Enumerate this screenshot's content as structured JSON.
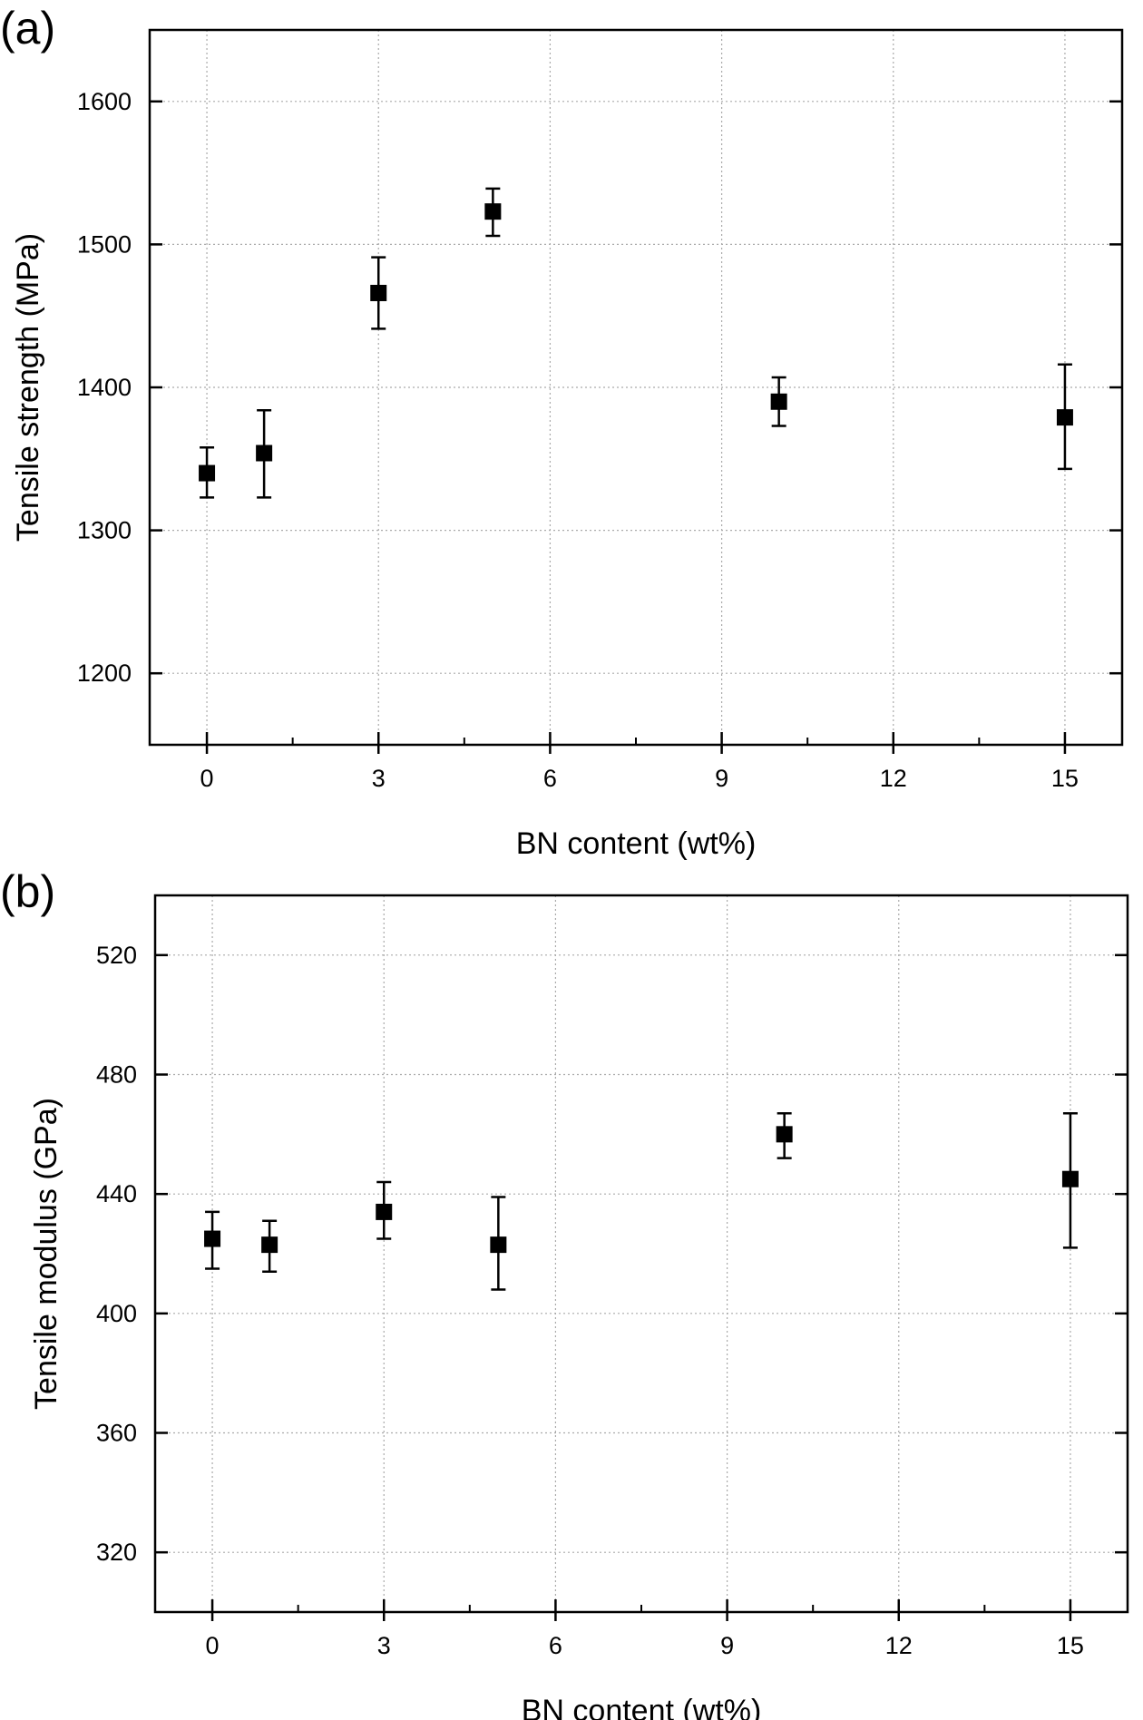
{
  "chart_data": [
    {
      "type": "scatter",
      "panel_label": "(a)",
      "title": "",
      "xlabel": "BN content (wt%)",
      "ylabel": "Tensile strength (MPa)",
      "xlim": [
        -1,
        16
      ],
      "ylim": [
        1150,
        1650
      ],
      "xticks": [
        0,
        3,
        6,
        9,
        12,
        15
      ],
      "yticks": [
        1200,
        1300,
        1400,
        1500,
        1600
      ],
      "grid": true,
      "series": [
        {
          "name": "Tensile strength",
          "color": "#000000",
          "marker": "square",
          "x": [
            0,
            1,
            3,
            5,
            10,
            15
          ],
          "y": [
            1340,
            1354,
            1466,
            1523,
            1390,
            1379
          ],
          "err_low": [
            1323,
            1323,
            1441,
            1506,
            1373,
            1343
          ],
          "err_high": [
            1358,
            1384,
            1491,
            1539,
            1407,
            1416
          ]
        }
      ]
    },
    {
      "type": "scatter",
      "panel_label": "(b)",
      "title": "",
      "xlabel": "BN content (wt%)",
      "ylabel": "Tensile modulus (GPa)",
      "xlim": [
        -1,
        16
      ],
      "ylim": [
        300,
        540
      ],
      "xticks": [
        0,
        3,
        6,
        9,
        12,
        15
      ],
      "yticks": [
        320,
        360,
        400,
        440,
        480,
        520
      ],
      "grid": true,
      "series": [
        {
          "name": "Tensile modulus",
          "color": "#000000",
          "marker": "square",
          "x": [
            0,
            1,
            3,
            5,
            10,
            15
          ],
          "y": [
            425,
            423,
            434,
            423,
            460,
            445
          ],
          "err_low": [
            415,
            414,
            425,
            408,
            452,
            422
          ],
          "err_high": [
            434,
            431,
            444,
            439,
            467,
            467
          ]
        }
      ]
    }
  ]
}
